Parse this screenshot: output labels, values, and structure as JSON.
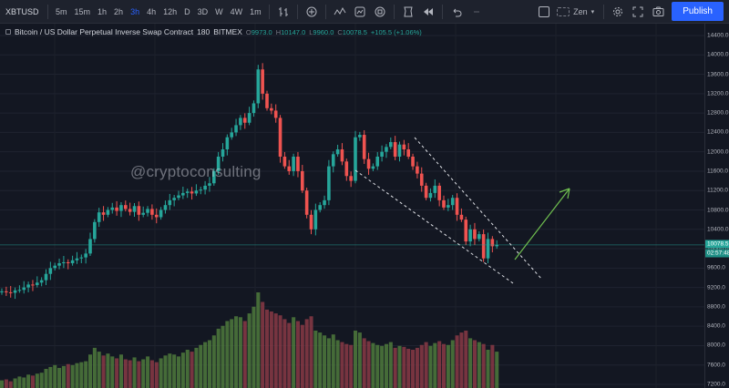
{
  "toolbar": {
    "symbol": "XBTUSD",
    "intervals": [
      "5m",
      "15m",
      "1h",
      "2h",
      "3h",
      "4h",
      "12h",
      "D",
      "3D",
      "W",
      "4W",
      "1m"
    ],
    "active_interval": "3h",
    "layout_label": "Zen",
    "publish_label": "Publish"
  },
  "legend": {
    "title": "Bitcoin / US Dollar Perpetual Inverse Swap Contract",
    "interval": "180",
    "exchange": "BITMEX",
    "open": "9973.0",
    "high": "10147.0",
    "low": "9960.0",
    "close": "10078.5",
    "change": "+105.5 (+1.06%)"
  },
  "watermark": "@cryptoconsulting",
  "price_axis": {
    "ticks": [
      "14400.0",
      "14000.0",
      "13600.0",
      "13200.0",
      "12800.0",
      "12400.0",
      "12000.0",
      "11600.0",
      "11200.0",
      "10800.0",
      "10400.0",
      "10000.0",
      "9600.0",
      "9200.0",
      "8800.0",
      "8400.0",
      "8000.0",
      "7600.0",
      "7200.0"
    ],
    "last_price": "10078.5",
    "countdown": "02:57:48"
  },
  "colors": {
    "up": "#26a69a",
    "down": "#ef5350",
    "volume_up": "#4f7a3c",
    "volume_down": "#8a3a45",
    "arrow": "#6fbf4f",
    "channel": "#dfe1e6",
    "accent": "#2962ff"
  },
  "chart_data": {
    "type": "candlestick",
    "price_range": [
      7200,
      14600
    ],
    "closes": [
      9120,
      9100,
      9090,
      9140,
      9150,
      9200,
      9260,
      9250,
      9300,
      9350,
      9480,
      9600,
      9650,
      9700,
      9720,
      9700,
      9760,
      9800,
      9820,
      9900,
      10200,
      10550,
      10750,
      10700,
      10800,
      10850,
      10780,
      10900,
      10820,
      10760,
      10880,
      10700,
      10740,
      10820,
      10700,
      10650,
      10800,
      10900,
      11000,
      11050,
      11100,
      11150,
      11180,
      11140,
      11200,
      11220,
      11300,
      11350,
      11600,
      11900,
      12050,
      12300,
      12400,
      12550,
      12700,
      12600,
      12800,
      13000,
      13700,
      13200,
      12900,
      12850,
      12700,
      11900,
      11700,
      11600,
      11900,
      11600,
      11200,
      10700,
      10400,
      10800,
      10900,
      11000,
      11700,
      11950,
      12050,
      11800,
      11500,
      11400,
      12300,
      12350,
      11850,
      11650,
      11700,
      11900,
      12000,
      12100,
      12200,
      11900,
      12150,
      12050,
      11900,
      11700,
      11550,
      11300,
      11050,
      11150,
      11300,
      11000,
      10850,
      10900,
      11050,
      10700,
      10600,
      10150,
      10400,
      10200,
      10300,
      9800,
      10200,
      10050,
      10078.5
    ],
    "volume_range": [
      0,
      100
    ],
    "volumes": [
      8,
      9,
      7,
      10,
      12,
      11,
      14,
      13,
      15,
      16,
      20,
      22,
      24,
      21,
      23,
      25,
      24,
      26,
      27,
      28,
      35,
      42,
      38,
      34,
      36,
      33,
      31,
      35,
      30,
      29,
      32,
      28,
      30,
      33,
      29,
      27,
      31,
      34,
      36,
      35,
      33,
      37,
      40,
      38,
      42,
      45,
      48,
      50,
      55,
      62,
      65,
      70,
      72,
      75,
      74,
      70,
      78,
      85,
      100,
      90,
      82,
      80,
      78,
      76,
      72,
      68,
      74,
      70,
      66,
      72,
      75,
      60,
      58,
      55,
      52,
      56,
      50,
      48,
      46,
      45,
      60,
      58,
      52,
      49,
      47,
      45,
      44,
      46,
      48,
      42,
      44,
      43,
      41,
      40,
      42,
      45,
      48,
      44,
      47,
      49,
      46,
      45,
      50,
      55,
      58,
      60,
      52,
      50,
      48,
      46,
      40,
      45,
      38
    ]
  }
}
